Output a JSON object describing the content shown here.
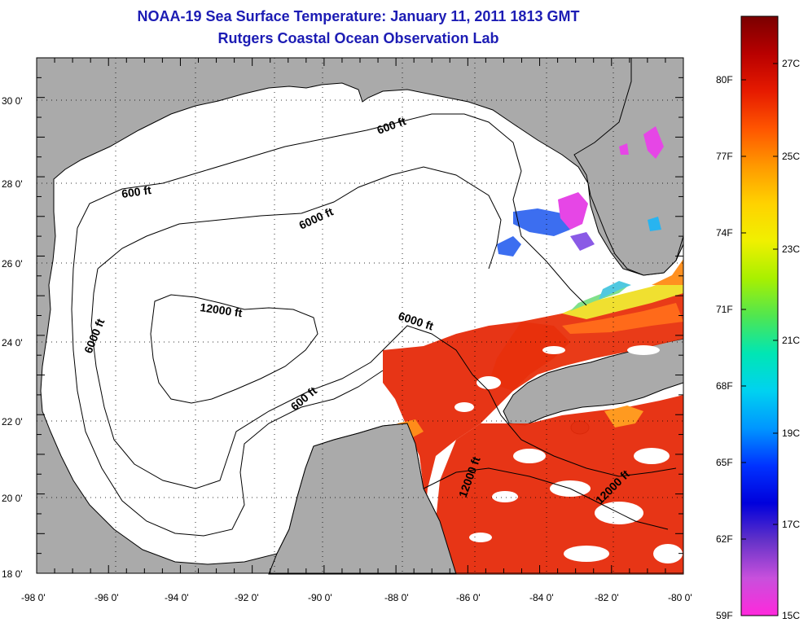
{
  "title": "NOAA-19 Sea Surface Temperature:  January 11, 2011 1813 GMT",
  "subtitle": "Rutgers Coastal Ocean Observation Lab",
  "lat_labels": [
    "30 0'",
    "28 0'",
    "26 0'",
    "24 0'",
    "22 0'",
    "20 0'",
    "18 0'"
  ],
  "lon_labels": [
    "-98 0'",
    "-96 0'",
    "-94 0'",
    "-92 0'",
    "-90 0'",
    "-88 0'",
    "-86 0'",
    "-84 0'",
    "-82 0'",
    "-80 0'"
  ],
  "contours": {
    "c600_top": "600 ft",
    "c600_left": "600 ft",
    "c6000_north": "6000 ft",
    "c6000_west": "6000 ft",
    "c12000_center": "12000 ft",
    "c6000_east": "6000 ft",
    "c600_south": "600 ft",
    "c12000_yucatan": "12000 ft",
    "c12000_cayman": "12000 ft"
  },
  "colorbar": {
    "f_labels": [
      "80F",
      "77F",
      "74F",
      "71F",
      "68F",
      "65F",
      "62F",
      "59F"
    ],
    "c_labels": [
      "27C",
      "25C",
      "23C",
      "21C",
      "19C",
      "17C",
      "15C"
    ],
    "colors": [
      "#7a0000",
      "#b80000",
      "#e61a00",
      "#ff5500",
      "#ff9900",
      "#ffd200",
      "#f0f000",
      "#a8f000",
      "#50e650",
      "#00e6b4",
      "#00d2f0",
      "#0096ff",
      "#0032ff",
      "#0000dc",
      "#6432c8",
      "#c850dc",
      "#ff28dc"
    ]
  }
}
